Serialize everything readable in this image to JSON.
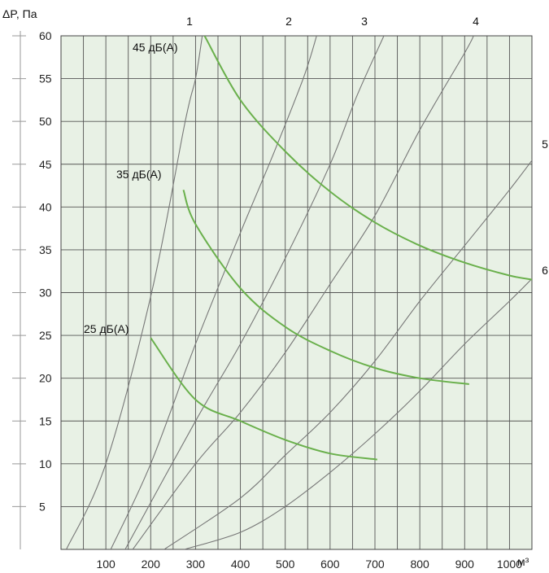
{
  "chart_data": {
    "type": "line",
    "ylabel": "ΔP, Па",
    "xunit": "м³",
    "ylim": [
      0,
      60
    ],
    "xlim": [
      0,
      1050
    ],
    "y_ticks": [
      "5",
      "10",
      "15",
      "20",
      "25",
      "30",
      "35",
      "40",
      "45",
      "50",
      "55",
      "60"
    ],
    "x_ticks": [
      "100",
      "200",
      "300",
      "400",
      "500",
      "600",
      "700",
      "800",
      "900",
      "1000"
    ],
    "grid": true,
    "background": "#e8f1e5",
    "grid_color": "#555555",
    "curve_color": "#777777",
    "noise_color": "#6ab04c",
    "fan_curves": [
      {
        "name": "1",
        "points": [
          [
            12,
            0
          ],
          [
            100,
            10
          ],
          [
            202,
            30
          ],
          [
            277,
            50
          ],
          [
            300,
            55
          ],
          [
            315,
            60
          ]
        ]
      },
      {
        "name": "2",
        "points": [
          [
            111,
            0
          ],
          [
            200,
            10
          ],
          [
            300,
            24
          ],
          [
            400,
            37
          ],
          [
            472,
            46
          ],
          [
            540,
            55
          ],
          [
            570,
            60
          ]
        ]
      },
      {
        "name": "3",
        "points": [
          [
            143,
            0
          ],
          [
            300,
            15
          ],
          [
            400,
            24
          ],
          [
            500,
            34
          ],
          [
            600,
            45
          ],
          [
            660,
            53
          ],
          [
            720,
            60
          ]
        ]
      },
      {
        "name": "4",
        "points": [
          [
            160,
            0
          ],
          [
            300,
            10
          ],
          [
            400,
            16
          ],
          [
            500,
            23
          ],
          [
            600,
            31
          ],
          [
            700,
            39
          ],
          [
            800,
            49
          ],
          [
            900,
            58
          ],
          [
            920,
            60
          ]
        ]
      },
      {
        "name": "5",
        "points": [
          [
            230,
            0
          ],
          [
            400,
            6
          ],
          [
            500,
            11
          ],
          [
            600,
            16
          ],
          [
            700,
            22
          ],
          [
            800,
            29
          ],
          [
            900,
            35.5
          ],
          [
            1000,
            42
          ],
          [
            1058,
            46
          ]
        ]
      },
      {
        "name": "6",
        "points": [
          [
            275,
            0
          ],
          [
            400,
            2
          ],
          [
            500,
            5
          ],
          [
            600,
            9
          ],
          [
            700,
            13.5
          ],
          [
            800,
            18.5
          ],
          [
            900,
            24
          ],
          [
            1000,
            29
          ],
          [
            1057,
            32
          ]
        ]
      }
    ],
    "noise_curves": [
      {
        "name": "25 дБ(А)",
        "points": [
          [
            200,
            24.7
          ],
          [
            300,
            17.5
          ],
          [
            400,
            15
          ],
          [
            500,
            12.8
          ],
          [
            600,
            11.2
          ],
          [
            705,
            10.5
          ]
        ]
      },
      {
        "name": "35 дБ(А)",
        "points": [
          [
            273,
            42
          ],
          [
            300,
            38
          ],
          [
            400,
            30.5
          ],
          [
            500,
            26
          ],
          [
            600,
            23.2
          ],
          [
            700,
            21.2
          ],
          [
            800,
            20
          ],
          [
            910,
            19.3
          ]
        ]
      },
      {
        "name": "45 дБ(А)",
        "points": [
          [
            320,
            60
          ],
          [
            400,
            52.5
          ],
          [
            500,
            46.5
          ],
          [
            600,
            41.8
          ],
          [
            700,
            38.2
          ],
          [
            800,
            35.5
          ],
          [
            900,
            33.5
          ],
          [
            1000,
            32
          ],
          [
            1052,
            31.5
          ]
        ]
      }
    ]
  }
}
